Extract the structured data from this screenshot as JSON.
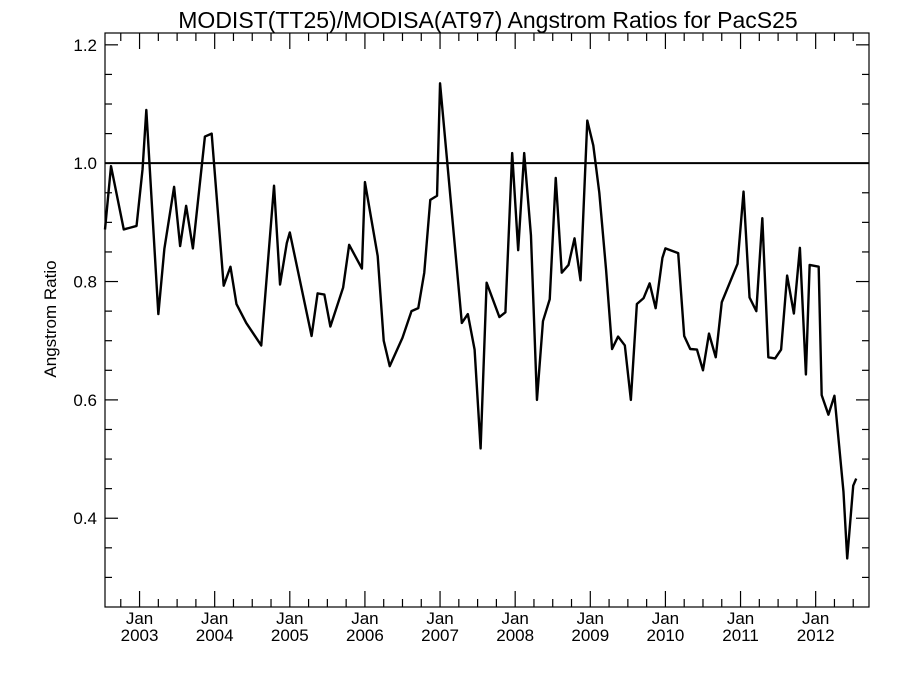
{
  "chart_data": {
    "type": "line",
    "title": "MODIST(TT25)/MODISA(AT97)  Angstrom Ratios for PacS25",
    "xlabel": "",
    "ylabel": "Angstrom Ratio",
    "xlim": [
      2002.54,
      2012.71
    ],
    "ylim": [
      0.25,
      1.22
    ],
    "y_ticks": [
      {
        "value": 0.4,
        "label": "0.4"
      },
      {
        "value": 0.6,
        "label": "0.6"
      },
      {
        "value": 0.8,
        "label": "0.8"
      },
      {
        "value": 1.0,
        "label": "1.0"
      },
      {
        "value": 1.2,
        "label": "1.2"
      }
    ],
    "x_ticks": [
      {
        "value": 2003,
        "month": "Jan",
        "year": "2003"
      },
      {
        "value": 2004,
        "month": "Jan",
        "year": "2004"
      },
      {
        "value": 2005,
        "month": "Jan",
        "year": "2005"
      },
      {
        "value": 2006,
        "month": "Jan",
        "year": "2006"
      },
      {
        "value": 2007,
        "month": "Jan",
        "year": "2007"
      },
      {
        "value": 2008,
        "month": "Jan",
        "year": "2008"
      },
      {
        "value": 2009,
        "month": "Jan",
        "year": "2009"
      },
      {
        "value": 2010,
        "month": "Jan",
        "year": "2010"
      },
      {
        "value": 2011,
        "month": "Jan",
        "year": "2011"
      },
      {
        "value": 2012,
        "month": "Jan",
        "year": "2012"
      }
    ],
    "reference_line": {
      "y": 1.0
    },
    "grid": false,
    "series": [
      {
        "color": "#000000",
        "points": [
          [
            2002.54,
            0.888
          ],
          [
            2002.62,
            0.995
          ],
          [
            2002.79,
            0.888
          ],
          [
            2002.96,
            0.894
          ],
          [
            2003.04,
            0.99
          ],
          [
            2003.09,
            1.09
          ],
          [
            2003.25,
            0.745
          ],
          [
            2003.33,
            0.855
          ],
          [
            2003.46,
            0.96
          ],
          [
            2003.54,
            0.86
          ],
          [
            2003.62,
            0.928
          ],
          [
            2003.71,
            0.856
          ],
          [
            2003.87,
            1.045
          ],
          [
            2003.96,
            1.05
          ],
          [
            2004.12,
            0.793
          ],
          [
            2004.21,
            0.825
          ],
          [
            2004.29,
            0.762
          ],
          [
            2004.42,
            0.73
          ],
          [
            2004.62,
            0.692
          ],
          [
            2004.79,
            0.962
          ],
          [
            2004.87,
            0.795
          ],
          [
            2004.96,
            0.865
          ],
          [
            2005.0,
            0.883
          ],
          [
            2005.29,
            0.708
          ],
          [
            2005.37,
            0.78
          ],
          [
            2005.46,
            0.778
          ],
          [
            2005.54,
            0.724
          ],
          [
            2005.71,
            0.79
          ],
          [
            2005.79,
            0.862
          ],
          [
            2005.96,
            0.822
          ],
          [
            2006.0,
            0.968
          ],
          [
            2006.17,
            0.843
          ],
          [
            2006.25,
            0.7
          ],
          [
            2006.33,
            0.657
          ],
          [
            2006.5,
            0.705
          ],
          [
            2006.62,
            0.75
          ],
          [
            2006.71,
            0.755
          ],
          [
            2006.79,
            0.815
          ],
          [
            2006.87,
            0.938
          ],
          [
            2006.96,
            0.945
          ],
          [
            2007.0,
            1.135
          ],
          [
            2007.12,
            0.968
          ],
          [
            2007.29,
            0.73
          ],
          [
            2007.37,
            0.745
          ],
          [
            2007.46,
            0.685
          ],
          [
            2007.54,
            0.518
          ],
          [
            2007.62,
            0.798
          ],
          [
            2007.79,
            0.74
          ],
          [
            2007.87,
            0.748
          ],
          [
            2007.96,
            1.017
          ],
          [
            2008.04,
            0.853
          ],
          [
            2008.12,
            1.017
          ],
          [
            2008.21,
            0.878
          ],
          [
            2008.29,
            0.6
          ],
          [
            2008.37,
            0.733
          ],
          [
            2008.46,
            0.77
          ],
          [
            2008.54,
            0.975
          ],
          [
            2008.62,
            0.815
          ],
          [
            2008.71,
            0.828
          ],
          [
            2008.79,
            0.873
          ],
          [
            2008.87,
            0.802
          ],
          [
            2008.96,
            1.072
          ],
          [
            2009.04,
            1.03
          ],
          [
            2009.12,
            0.95
          ],
          [
            2009.21,
            0.82
          ],
          [
            2009.29,
            0.686
          ],
          [
            2009.37,
            0.707
          ],
          [
            2009.46,
            0.692
          ],
          [
            2009.54,
            0.6
          ],
          [
            2009.62,
            0.762
          ],
          [
            2009.71,
            0.772
          ],
          [
            2009.79,
            0.797
          ],
          [
            2009.87,
            0.755
          ],
          [
            2009.96,
            0.84
          ],
          [
            2010.0,
            0.856
          ],
          [
            2010.17,
            0.848
          ],
          [
            2010.25,
            0.708
          ],
          [
            2010.33,
            0.686
          ],
          [
            2010.42,
            0.685
          ],
          [
            2010.5,
            0.65
          ],
          [
            2010.58,
            0.712
          ],
          [
            2010.67,
            0.672
          ],
          [
            2010.75,
            0.765
          ],
          [
            2010.96,
            0.83
          ],
          [
            2011.04,
            0.952
          ],
          [
            2011.12,
            0.773
          ],
          [
            2011.21,
            0.75
          ],
          [
            2011.29,
            0.907
          ],
          [
            2011.37,
            0.672
          ],
          [
            2011.46,
            0.67
          ],
          [
            2011.54,
            0.685
          ],
          [
            2011.62,
            0.81
          ],
          [
            2011.71,
            0.746
          ],
          [
            2011.79,
            0.857
          ],
          [
            2011.87,
            0.643
          ],
          [
            2011.92,
            0.828
          ],
          [
            2012.04,
            0.825
          ],
          [
            2012.08,
            0.608
          ],
          [
            2012.17,
            0.575
          ],
          [
            2012.25,
            0.607
          ],
          [
            2012.37,
            0.445
          ],
          [
            2012.42,
            0.332
          ],
          [
            2012.5,
            0.455
          ],
          [
            2012.54,
            0.467
          ]
        ]
      }
    ]
  }
}
